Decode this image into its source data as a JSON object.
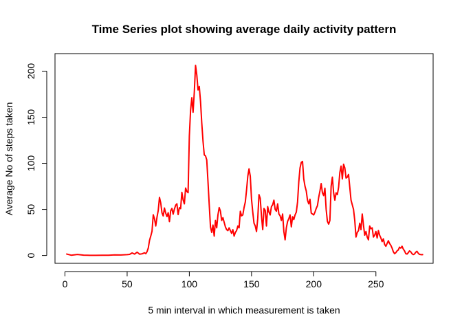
{
  "chart_data": {
    "type": "line",
    "title": "Time Series plot showing average daily activity pattern",
    "xlabel": "5 min interval in which measurement is taken",
    "ylabel": "Average No of steps taken",
    "xlim": [
      0,
      288
    ],
    "ylim": [
      0,
      210
    ],
    "x_ticks": [
      0,
      50,
      100,
      150,
      200,
      250
    ],
    "y_ticks": [
      0,
      50,
      100,
      150,
      200
    ],
    "x_tick_labels": [
      "0",
      "50",
      "100",
      "150",
      "200",
      "250"
    ],
    "y_tick_labels": [
      "0",
      "50",
      "100",
      "150",
      "200"
    ],
    "grid": false,
    "line_color": "#ff0000",
    "series": [
      {
        "points": [
          [
            1,
            1.7
          ],
          [
            5,
            0.3
          ],
          [
            10,
            1.1
          ],
          [
            15,
            0.4
          ],
          [
            20,
            0.2
          ],
          [
            25,
            0.2
          ],
          [
            30,
            0.3
          ],
          [
            35,
            0.3
          ],
          [
            40,
            0.6
          ],
          [
            45,
            0.5
          ],
          [
            50,
            0.9
          ],
          [
            52,
            1.2
          ],
          [
            54,
            2.8
          ],
          [
            56,
            1.5
          ],
          [
            58,
            3.6
          ],
          [
            60,
            1.4
          ],
          [
            62,
            1.8
          ],
          [
            64,
            2.9
          ],
          [
            65,
            2.0
          ],
          [
            66,
            4.1
          ],
          [
            67,
            8.1
          ],
          [
            68,
            16.4
          ],
          [
            69,
            21.1
          ],
          [
            70,
            26.3
          ],
          [
            71,
            44.2
          ],
          [
            72,
            39.7
          ],
          [
            73,
            32.0
          ],
          [
            74,
            41.5
          ],
          [
            75,
            48.9
          ],
          [
            76,
            63.0
          ],
          [
            77,
            57.1
          ],
          [
            78,
            46.3
          ],
          [
            79,
            42.9
          ],
          [
            80,
            51.5
          ],
          [
            81,
            46.0
          ],
          [
            82,
            42.2
          ],
          [
            83,
            46.4
          ],
          [
            84,
            36.7
          ],
          [
            85,
            48.5
          ],
          [
            86,
            51.0
          ],
          [
            87,
            44.8
          ],
          [
            88,
            50.3
          ],
          [
            89,
            54.5
          ],
          [
            90,
            56.1
          ],
          [
            91,
            44.4
          ],
          [
            92,
            51.9
          ],
          [
            93,
            50.8
          ],
          [
            94,
            68.5
          ],
          [
            95,
            60.3
          ],
          [
            96,
            56.0
          ],
          [
            97,
            73.2
          ],
          [
            98,
            69.5
          ],
          [
            99,
            68.1
          ],
          [
            100,
            129.4
          ],
          [
            101,
            157.5
          ],
          [
            102,
            171.2
          ],
          [
            103,
            155.4
          ],
          [
            104,
            177.3
          ],
          [
            105,
            206.2
          ],
          [
            106,
            195.9
          ],
          [
            107,
            179.6
          ],
          [
            108,
            183.4
          ],
          [
            109,
            167.0
          ],
          [
            110,
            143.5
          ],
          [
            111,
            124.0
          ],
          [
            112,
            109.1
          ],
          [
            113,
            108.1
          ],
          [
            114,
            103.7
          ],
          [
            115,
            80.0
          ],
          [
            116,
            55.0
          ],
          [
            117,
            31.0
          ],
          [
            118,
            25.0
          ],
          [
            119,
            33.0
          ],
          [
            120,
            21.0
          ],
          [
            121,
            38.0
          ],
          [
            122,
            30.0
          ],
          [
            123,
            44.0
          ],
          [
            124,
            52.0
          ],
          [
            125,
            48.0
          ],
          [
            126,
            38.0
          ],
          [
            127,
            41.0
          ],
          [
            128,
            36.0
          ],
          [
            129,
            31.0
          ],
          [
            130,
            28.0
          ],
          [
            131,
            27.0
          ],
          [
            132,
            30.0
          ],
          [
            133,
            27.0
          ],
          [
            134,
            24.0
          ],
          [
            135,
            28.0
          ],
          [
            136,
            21.0
          ],
          [
            137,
            25.0
          ],
          [
            138,
            27.0
          ],
          [
            139,
            32.0
          ],
          [
            140,
            30.0
          ],
          [
            141,
            48.0
          ],
          [
            142,
            43.0
          ],
          [
            143,
            44.0
          ],
          [
            144,
            52.0
          ],
          [
            145,
            58.0
          ],
          [
            146,
            71.0
          ],
          [
            147,
            86.0
          ],
          [
            148,
            94.0
          ],
          [
            149,
            86.0
          ],
          [
            150,
            61.0
          ],
          [
            151,
            47.0
          ],
          [
            152,
            35.0
          ],
          [
            153,
            32.0
          ],
          [
            154,
            26.0
          ],
          [
            155,
            40.0
          ],
          [
            156,
            66.0
          ],
          [
            157,
            62.0
          ],
          [
            158,
            43.0
          ],
          [
            159,
            28.0
          ],
          [
            160,
            51.0
          ],
          [
            161,
            49.0
          ],
          [
            162,
            32.0
          ],
          [
            163,
            53.0
          ],
          [
            164,
            47.0
          ],
          [
            165,
            44.0
          ],
          [
            166,
            53.0
          ],
          [
            167,
            55.0
          ],
          [
            168,
            60.0
          ],
          [
            169,
            50.0
          ],
          [
            170,
            48.0
          ],
          [
            171,
            56.0
          ],
          [
            172,
            45.0
          ],
          [
            173,
            43.0
          ],
          [
            174,
            38.0
          ],
          [
            175,
            45.0
          ],
          [
            176,
            26.0
          ],
          [
            177,
            17.0
          ],
          [
            178,
            30.0
          ],
          [
            179,
            37.0
          ],
          [
            180,
            40.0
          ],
          [
            181,
            44.0
          ],
          [
            182,
            31.0
          ],
          [
            183,
            42.0
          ],
          [
            184,
            39.0
          ],
          [
            185,
            44.0
          ],
          [
            186,
            47.0
          ],
          [
            187,
            58.0
          ],
          [
            188,
            80.0
          ],
          [
            189,
            95.0
          ],
          [
            190,
            101.0
          ],
          [
            191,
            102.0
          ],
          [
            192,
            83.0
          ],
          [
            193,
            75.0
          ],
          [
            194,
            70.0
          ],
          [
            195,
            60.0
          ],
          [
            196,
            56.0
          ],
          [
            197,
            61.0
          ],
          [
            198,
            46.0
          ],
          [
            199,
            45.0
          ],
          [
            200,
            44.0
          ],
          [
            201,
            47.0
          ],
          [
            202,
            51.0
          ],
          [
            203,
            54.0
          ],
          [
            204,
            63.0
          ],
          [
            205,
            70.0
          ],
          [
            206,
            78.0
          ],
          [
            207,
            68.0
          ],
          [
            208,
            65.0
          ],
          [
            209,
            73.0
          ],
          [
            210,
            50.0
          ],
          [
            211,
            37.0
          ],
          [
            212,
            34.0
          ],
          [
            213,
            38.0
          ],
          [
            214,
            75.0
          ],
          [
            215,
            85.0
          ],
          [
            216,
            68.0
          ],
          [
            217,
            60.0
          ],
          [
            218,
            68.0
          ],
          [
            219,
            66.0
          ],
          [
            220,
            74.0
          ],
          [
            221,
            90.0
          ],
          [
            222,
            97.0
          ],
          [
            223,
            83.0
          ],
          [
            224,
            99.0
          ],
          [
            225,
            95.0
          ],
          [
            226,
            84.0
          ],
          [
            227,
            85.0
          ],
          [
            228,
            88.0
          ],
          [
            229,
            74.0
          ],
          [
            230,
            60.0
          ],
          [
            231,
            55.0
          ],
          [
            232,
            50.0
          ],
          [
            233,
            38.0
          ],
          [
            234,
            20.0
          ],
          [
            235,
            25.0
          ],
          [
            236,
            27.0
          ],
          [
            237,
            35.0
          ],
          [
            238,
            28.0
          ],
          [
            239,
            45.0
          ],
          [
            240,
            33.0
          ],
          [
            241,
            22.0
          ],
          [
            242,
            26.0
          ],
          [
            243,
            20.0
          ],
          [
            244,
            17.0
          ],
          [
            245,
            32.0
          ],
          [
            246,
            29.0
          ],
          [
            247,
            30.0
          ],
          [
            248,
            20.0
          ],
          [
            249,
            22.0
          ],
          [
            250,
            26.0
          ],
          [
            251,
            19.0
          ],
          [
            252,
            27.0
          ],
          [
            253,
            22.0
          ],
          [
            254,
            19.0
          ],
          [
            255,
            15.0
          ],
          [
            256,
            18.0
          ],
          [
            257,
            12.0
          ],
          [
            258,
            10.0
          ],
          [
            259,
            13.0
          ],
          [
            260,
            16.0
          ],
          [
            261,
            13.0
          ],
          [
            262,
            11.0
          ],
          [
            263,
            8.0
          ],
          [
            264,
            4.0
          ],
          [
            265,
            2.0
          ],
          [
            266,
            3.0
          ],
          [
            267,
            5.0
          ],
          [
            268,
            6.0
          ],
          [
            269,
            9.0
          ],
          [
            270,
            8.0
          ],
          [
            271,
            10.0
          ],
          [
            272,
            7.0
          ],
          [
            273,
            5.0
          ],
          [
            274,
            2.0
          ],
          [
            275,
            1.5
          ],
          [
            276,
            3.0
          ],
          [
            277,
            5.0
          ],
          [
            278,
            4.0
          ],
          [
            279,
            2.0
          ],
          [
            280,
            1.0
          ],
          [
            281,
            1.5
          ],
          [
            282,
            3.5
          ],
          [
            283,
            4.5
          ],
          [
            284,
            2.5
          ],
          [
            285,
            1.2
          ],
          [
            286,
            1.0
          ],
          [
            287,
            0.8
          ],
          [
            288,
            1.1
          ]
        ]
      }
    ]
  }
}
